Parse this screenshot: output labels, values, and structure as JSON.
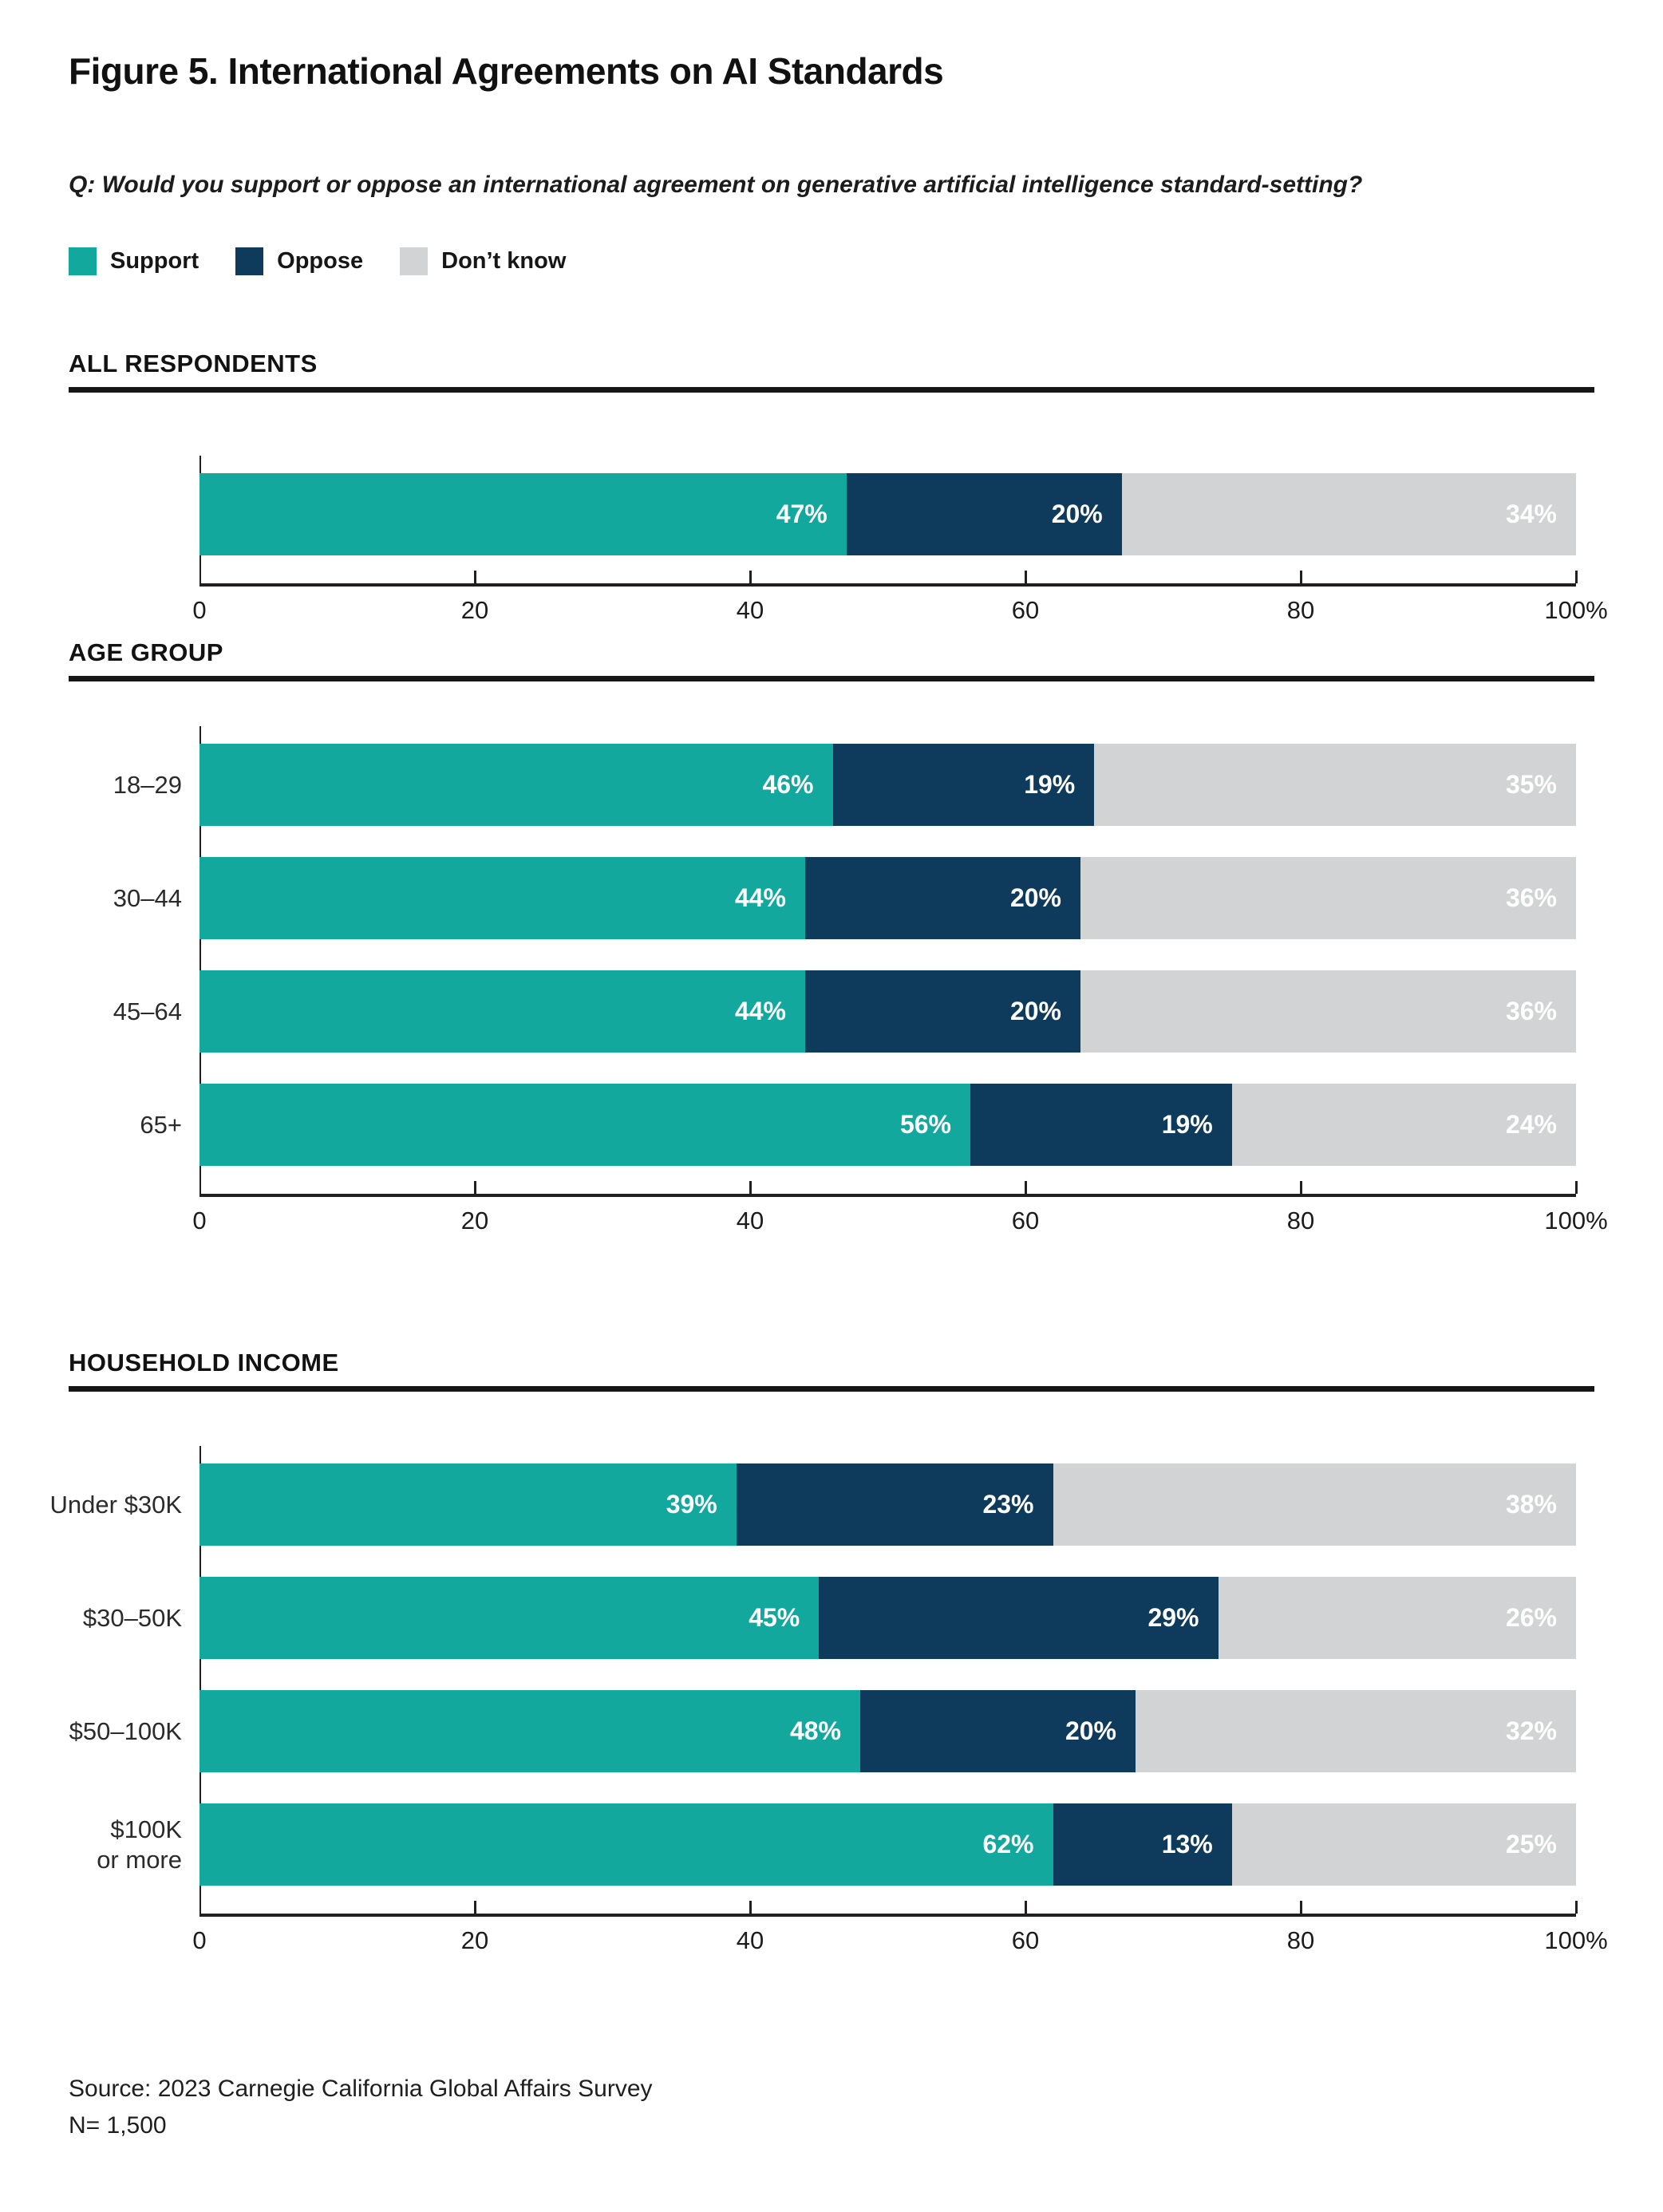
{
  "title": "Figure 5. International Agreements on AI Standards",
  "question": "Q: Would you support or oppose an international agreement on generative artificial intelligence standard-setting?",
  "legend": [
    {
      "label": "Support",
      "color": "#12A89D"
    },
    {
      "label": "Oppose",
      "color": "#0E3A5C"
    },
    {
      "label": "Don’t know",
      "color": "#D1D3D4"
    }
  ],
  "colors": {
    "support": "#12A89D",
    "oppose": "#0E3A5C",
    "dont_know": "#D1D3D4",
    "axis": "#231F20",
    "rule": "#161616"
  },
  "chart_data": [
    {
      "type": "bar",
      "orientation": "horizontal",
      "stacked": true,
      "title": "ALL RESPONDENTS",
      "categories": [
        ""
      ],
      "series": [
        {
          "name": "Support",
          "color": "#12A89D",
          "values": [
            47
          ]
        },
        {
          "name": "Oppose",
          "color": "#0E3A5C",
          "values": [
            20
          ]
        },
        {
          "name": "Don’t know",
          "color": "#D1D3D4",
          "values": [
            34
          ]
        }
      ],
      "xlim": [
        0,
        100
      ],
      "x_ticks": [
        0,
        20,
        40,
        60,
        80,
        100
      ],
      "x_tick_labels": [
        "0",
        "20",
        "40",
        "60",
        "80",
        "100%"
      ],
      "value_suffix": "%"
    },
    {
      "type": "bar",
      "orientation": "horizontal",
      "stacked": true,
      "title": "AGE GROUP",
      "categories": [
        "18–29",
        "30–44",
        "45–64",
        "65+"
      ],
      "series": [
        {
          "name": "Support",
          "color": "#12A89D",
          "values": [
            46,
            44,
            44,
            56
          ]
        },
        {
          "name": "Oppose",
          "color": "#0E3A5C",
          "values": [
            19,
            20,
            20,
            19
          ]
        },
        {
          "name": "Don’t know",
          "color": "#D1D3D4",
          "values": [
            35,
            36,
            36,
            24
          ]
        }
      ],
      "xlim": [
        0,
        100
      ],
      "x_ticks": [
        0,
        20,
        40,
        60,
        80,
        100
      ],
      "x_tick_labels": [
        "0",
        "20",
        "40",
        "60",
        "80",
        "100%"
      ],
      "value_suffix": "%"
    },
    {
      "type": "bar",
      "orientation": "horizontal",
      "stacked": true,
      "title": "HOUSEHOLD INCOME",
      "categories": [
        "Under $30K",
        "$30–50K",
        "$50–100K",
        "$100K\nor more"
      ],
      "series": [
        {
          "name": "Support",
          "color": "#12A89D",
          "values": [
            39,
            45,
            48,
            62
          ]
        },
        {
          "name": "Oppose",
          "color": "#0E3A5C",
          "values": [
            23,
            29,
            20,
            13
          ]
        },
        {
          "name": "Don’t know",
          "color": "#D1D3D4",
          "values": [
            38,
            26,
            32,
            25
          ]
        }
      ],
      "xlim": [
        0,
        100
      ],
      "x_ticks": [
        0,
        20,
        40,
        60,
        80,
        100
      ],
      "x_tick_labels": [
        "0",
        "20",
        "40",
        "60",
        "80",
        "100%"
      ],
      "value_suffix": "%"
    }
  ],
  "source": {
    "line1": "Source: 2023 Carnegie California Global Affairs Survey",
    "line2": "N= 1,500"
  }
}
